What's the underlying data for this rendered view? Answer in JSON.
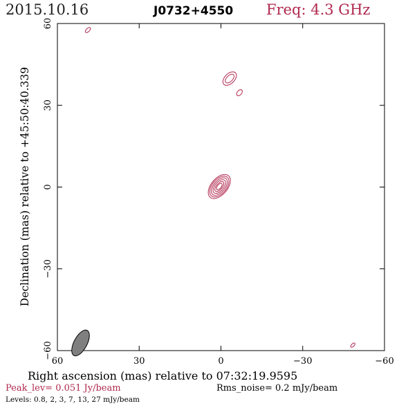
{
  "header": {
    "date": "2015.10.16",
    "source": "J0732+4550",
    "frequency": "Freq: 4.3 GHz"
  },
  "footer": {
    "peak": "Peak_lev=  0.051 Jy/beam",
    "rms": "Rms_noise=   0.2 mJy/beam",
    "levels": "Levels: 0.8,    2,    3,    7,   13,   27  mJy/beam"
  },
  "colors": {
    "contour": "#b0284e",
    "peak_text": "#b0284e",
    "frequency_text": "#b0284e",
    "beam_fill": "#7f7f7f"
  },
  "chart_data": {
    "type": "contour",
    "xlabel": "Right ascension (mas) relative to 07:32:19.9595",
    "ylabel": "Declination (mas) relative to +45:50:40.339",
    "xlim": [
      60,
      -60
    ],
    "ylim": [
      -60,
      60
    ],
    "xticks": [
      60,
      30,
      0,
      -30,
      -60
    ],
    "yticks": [
      60,
      30,
      0,
      -30,
      -60
    ],
    "xtick_labels": [
      "60",
      "30",
      "0",
      "−30",
      "−60"
    ],
    "ytick_labels": [
      "60",
      "30",
      "0",
      "−30",
      "−60"
    ],
    "contour_levels_mJy": [
      0.8,
      2,
      3,
      7,
      13,
      27
    ],
    "components": [
      {
        "ra": 0.6,
        "dec": 0.2,
        "levels": [
          {
            "semi_major": 5.2,
            "semi_minor": 3.0,
            "pa": 40
          },
          {
            "semi_major": 4.5,
            "semi_minor": 2.6,
            "pa": 40
          },
          {
            "semi_major": 3.8,
            "semi_minor": 2.1,
            "pa": 40
          },
          {
            "semi_major": 3.0,
            "semi_minor": 1.6,
            "pa": 40
          },
          {
            "semi_major": 2.2,
            "semi_minor": 1.1,
            "pa": 40
          },
          {
            "semi_major": 1.4,
            "semi_minor": 0.7,
            "pa": 40
          }
        ]
      },
      {
        "ra": -3.2,
        "dec": 39.8,
        "levels": [
          {
            "semi_major": 3.0,
            "semi_minor": 1.8,
            "pa": 45
          },
          {
            "semi_major": 2.0,
            "semi_minor": 1.1,
            "pa": 45
          }
        ]
      },
      {
        "ra": -6.8,
        "dec": 34.6,
        "levels": [
          {
            "semi_major": 1.3,
            "semi_minor": 0.8,
            "pa": 40
          }
        ]
      },
      {
        "ra": 48.8,
        "dec": 57.6,
        "levels": [
          {
            "semi_major": 1.2,
            "semi_minor": 0.6,
            "pa": 45
          }
        ]
      },
      {
        "ra": -48.4,
        "dec": -58.0,
        "levels": [
          {
            "semi_major": 1.0,
            "semi_minor": 0.5,
            "pa": 45
          }
        ]
      }
    ],
    "beam": {
      "ra": 51.5,
      "dec": -57.2,
      "major_mas": 5.2,
      "minor_mas": 2.4,
      "pa": 28
    }
  }
}
